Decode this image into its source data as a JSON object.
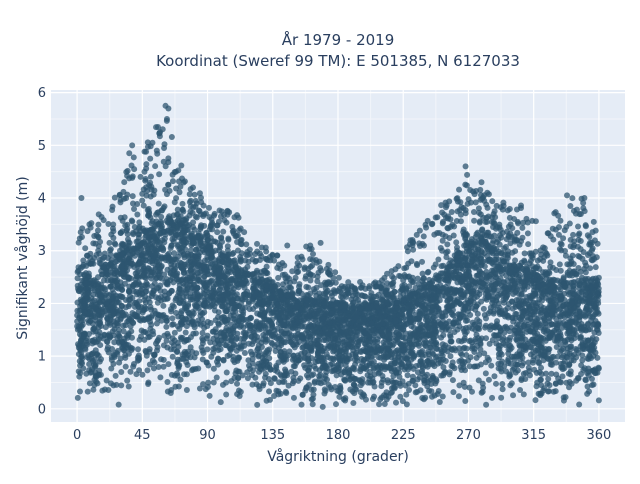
{
  "chart_data": {
    "type": "scatter",
    "title_line1": "År 1979 - 2019",
    "title_line2": "Koordinat (Sweref 99 TM): E 501385, N 6127033",
    "xlabel": "Vågriktning (grader)",
    "ylabel": "Signifikant våghöjd (m)",
    "xlim": [
      -18,
      378
    ],
    "ylim": [
      -0.25,
      6.05
    ],
    "x_ticks": [
      0,
      45,
      90,
      135,
      180,
      225,
      270,
      315,
      360
    ],
    "y_ticks": [
      0,
      1,
      2,
      3,
      4,
      5,
      6
    ],
    "grid": true,
    "marker_color": "#2e5670",
    "background_color": "#e5ecf6",
    "envelope": {
      "direction_deg": [
        0,
        10,
        20,
        30,
        40,
        50,
        60,
        70,
        80,
        90,
        100,
        110,
        120,
        130,
        140,
        150,
        160,
        170,
        180,
        190,
        200,
        210,
        220,
        230,
        240,
        250,
        260,
        270,
        280,
        290,
        300,
        310,
        320,
        330,
        340,
        350,
        360
      ],
      "dense_upper_height_m": [
        2.3,
        2.4,
        2.6,
        2.9,
        3.1,
        3.4,
        3.55,
        3.5,
        3.3,
        3.1,
        2.9,
        2.7,
        2.5,
        2.35,
        2.2,
        2.1,
        2.05,
        2.0,
        1.95,
        1.9,
        1.9,
        1.95,
        2.0,
        2.1,
        2.3,
        2.5,
        2.8,
        3.1,
        3.2,
        3.0,
        2.8,
        2.6,
        2.5,
        2.4,
        2.4,
        2.35,
        2.3
      ],
      "max_height_m": [
        3.4,
        3.6,
        3.9,
        4.3,
        4.9,
        5.1,
        5.7,
        4.7,
        4.3,
        3.9,
        3.8,
        3.7,
        3.3,
        3.1,
        2.9,
        2.8,
        3.2,
        2.8,
        2.6,
        2.5,
        2.4,
        2.5,
        2.7,
        3.2,
        3.6,
        3.9,
        4.0,
        4.6,
        4.3,
        4.0,
        3.8,
        3.9,
        3.6,
        3.9,
        4.1,
        4.0,
        3.5
      ]
    },
    "notable_points": [
      {
        "x": 61,
        "y": 5.75
      },
      {
        "x": 63,
        "y": 5.7
      },
      {
        "x": 62,
        "y": 5.5
      },
      {
        "x": 52,
        "y": 5.05
      },
      {
        "x": 38,
        "y": 5.0
      },
      {
        "x": 60,
        "y": 4.95
      },
      {
        "x": 55,
        "y": 4.9
      },
      {
        "x": 36,
        "y": 4.85
      },
      {
        "x": 268,
        "y": 4.6
      },
      {
        "x": 279,
        "y": 4.3
      },
      {
        "x": 283,
        "y": 4.1
      },
      {
        "x": 350,
        "y": 4.0
      },
      {
        "x": 338,
        "y": 4.05
      },
      {
        "x": 3,
        "y": 4.0
      },
      {
        "x": 145,
        "y": 3.1
      },
      {
        "x": 168,
        "y": 3.15
      },
      {
        "x": 230,
        "y": 3.2
      }
    ]
  }
}
